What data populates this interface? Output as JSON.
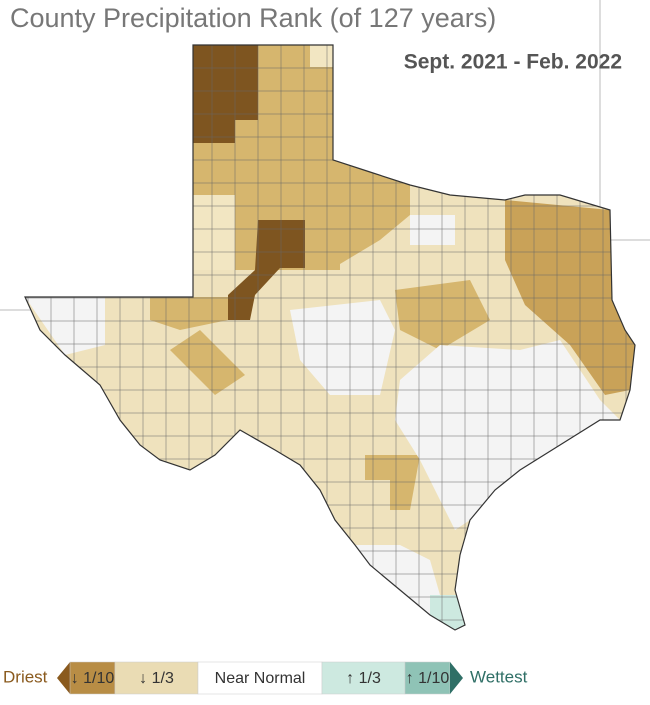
{
  "title": "County Precipitation Rank (of 127 years)",
  "subtitle": "Sept. 2021 - Feb. 2022",
  "legend": {
    "left_label": "Driest",
    "right_label": "Wettest",
    "left_color": "#8a5a1e",
    "right_color": "#2f6f66",
    "items": [
      {
        "label": "↓ 1/10",
        "color": "#b88d45"
      },
      {
        "label": "↓ 1/3",
        "color": "#eadcb4"
      },
      {
        "label": "Near Normal",
        "color": "#ffffff"
      },
      {
        "label": "↑ 1/3",
        "color": "#cde9e0"
      },
      {
        "label": "↑ 1/10",
        "color": "#8fc3b6"
      }
    ]
  }
}
